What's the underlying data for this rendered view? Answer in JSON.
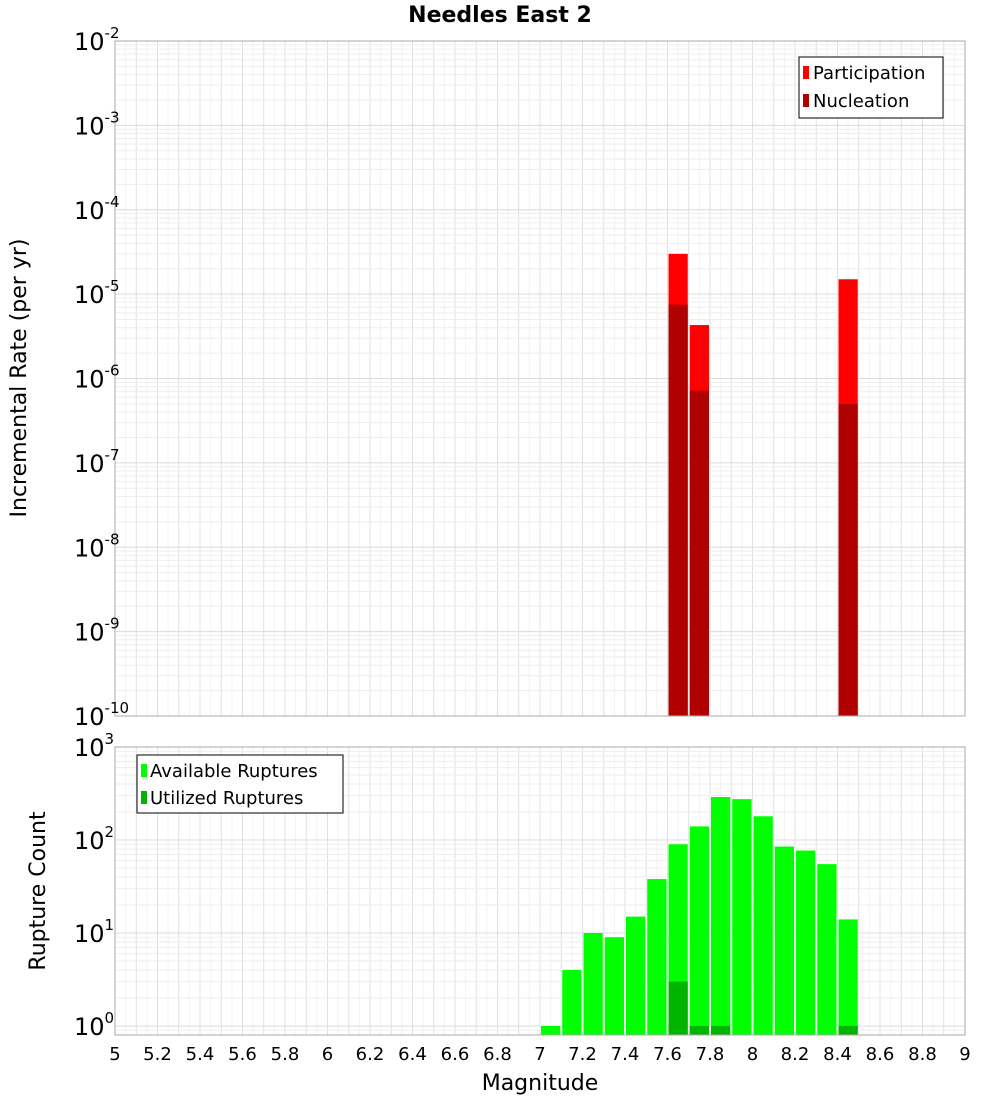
{
  "chart_data": [
    {
      "type": "bar",
      "title": "Needles East 2",
      "ylabel": "Incremental Rate (per yr)",
      "xlabel": "",
      "yscale": "log",
      "ylim": [
        1e-10,
        0.01
      ],
      "xlim": [
        5,
        9
      ],
      "bar_width": 0.1,
      "legend_position": "top-right",
      "series": [
        {
          "name": "Participation",
          "color": "#ff0000",
          "x": [
            7.65,
            7.75,
            8.45
          ],
          "values": [
            3e-05,
            4.3e-06,
            1.5e-05
          ]
        },
        {
          "name": "Nucleation",
          "color": "#b00000",
          "x": [
            7.65,
            7.75,
            8.45
          ],
          "values": [
            7.5e-06,
            7.2e-07,
            5e-07
          ]
        }
      ]
    },
    {
      "type": "bar",
      "title": "",
      "ylabel": "Rupture Count",
      "xlabel": "Magnitude",
      "yscale": "log",
      "ylim": [
        0.8,
        1000
      ],
      "xlim": [
        5,
        9
      ],
      "bar_width": 0.1,
      "legend_position": "top-left",
      "x_ticks": [
        "5",
        "5.2",
        "5.4",
        "5.6",
        "5.8",
        "6",
        "6.2",
        "6.4",
        "6.6",
        "6.8",
        "7",
        "7.2",
        "7.4",
        "7.6",
        "7.8",
        "8",
        "8.2",
        "8.4",
        "8.6",
        "8.8",
        "9"
      ],
      "series": [
        {
          "name": "Available Ruptures",
          "color": "#00ff00",
          "x": [
            7.05,
            7.15,
            7.25,
            7.35,
            7.45,
            7.55,
            7.65,
            7.75,
            7.85,
            7.95,
            8.05,
            8.15,
            8.25,
            8.35,
            8.45
          ],
          "values": [
            1,
            4,
            10,
            9,
            15,
            38,
            90,
            140,
            290,
            275,
            180,
            85,
            77,
            55,
            14
          ]
        },
        {
          "name": "Utilized Ruptures",
          "color": "#00b400",
          "x": [
            7.65,
            7.75,
            7.85,
            8.45
          ],
          "values": [
            3,
            1,
            1,
            1
          ]
        }
      ]
    }
  ]
}
